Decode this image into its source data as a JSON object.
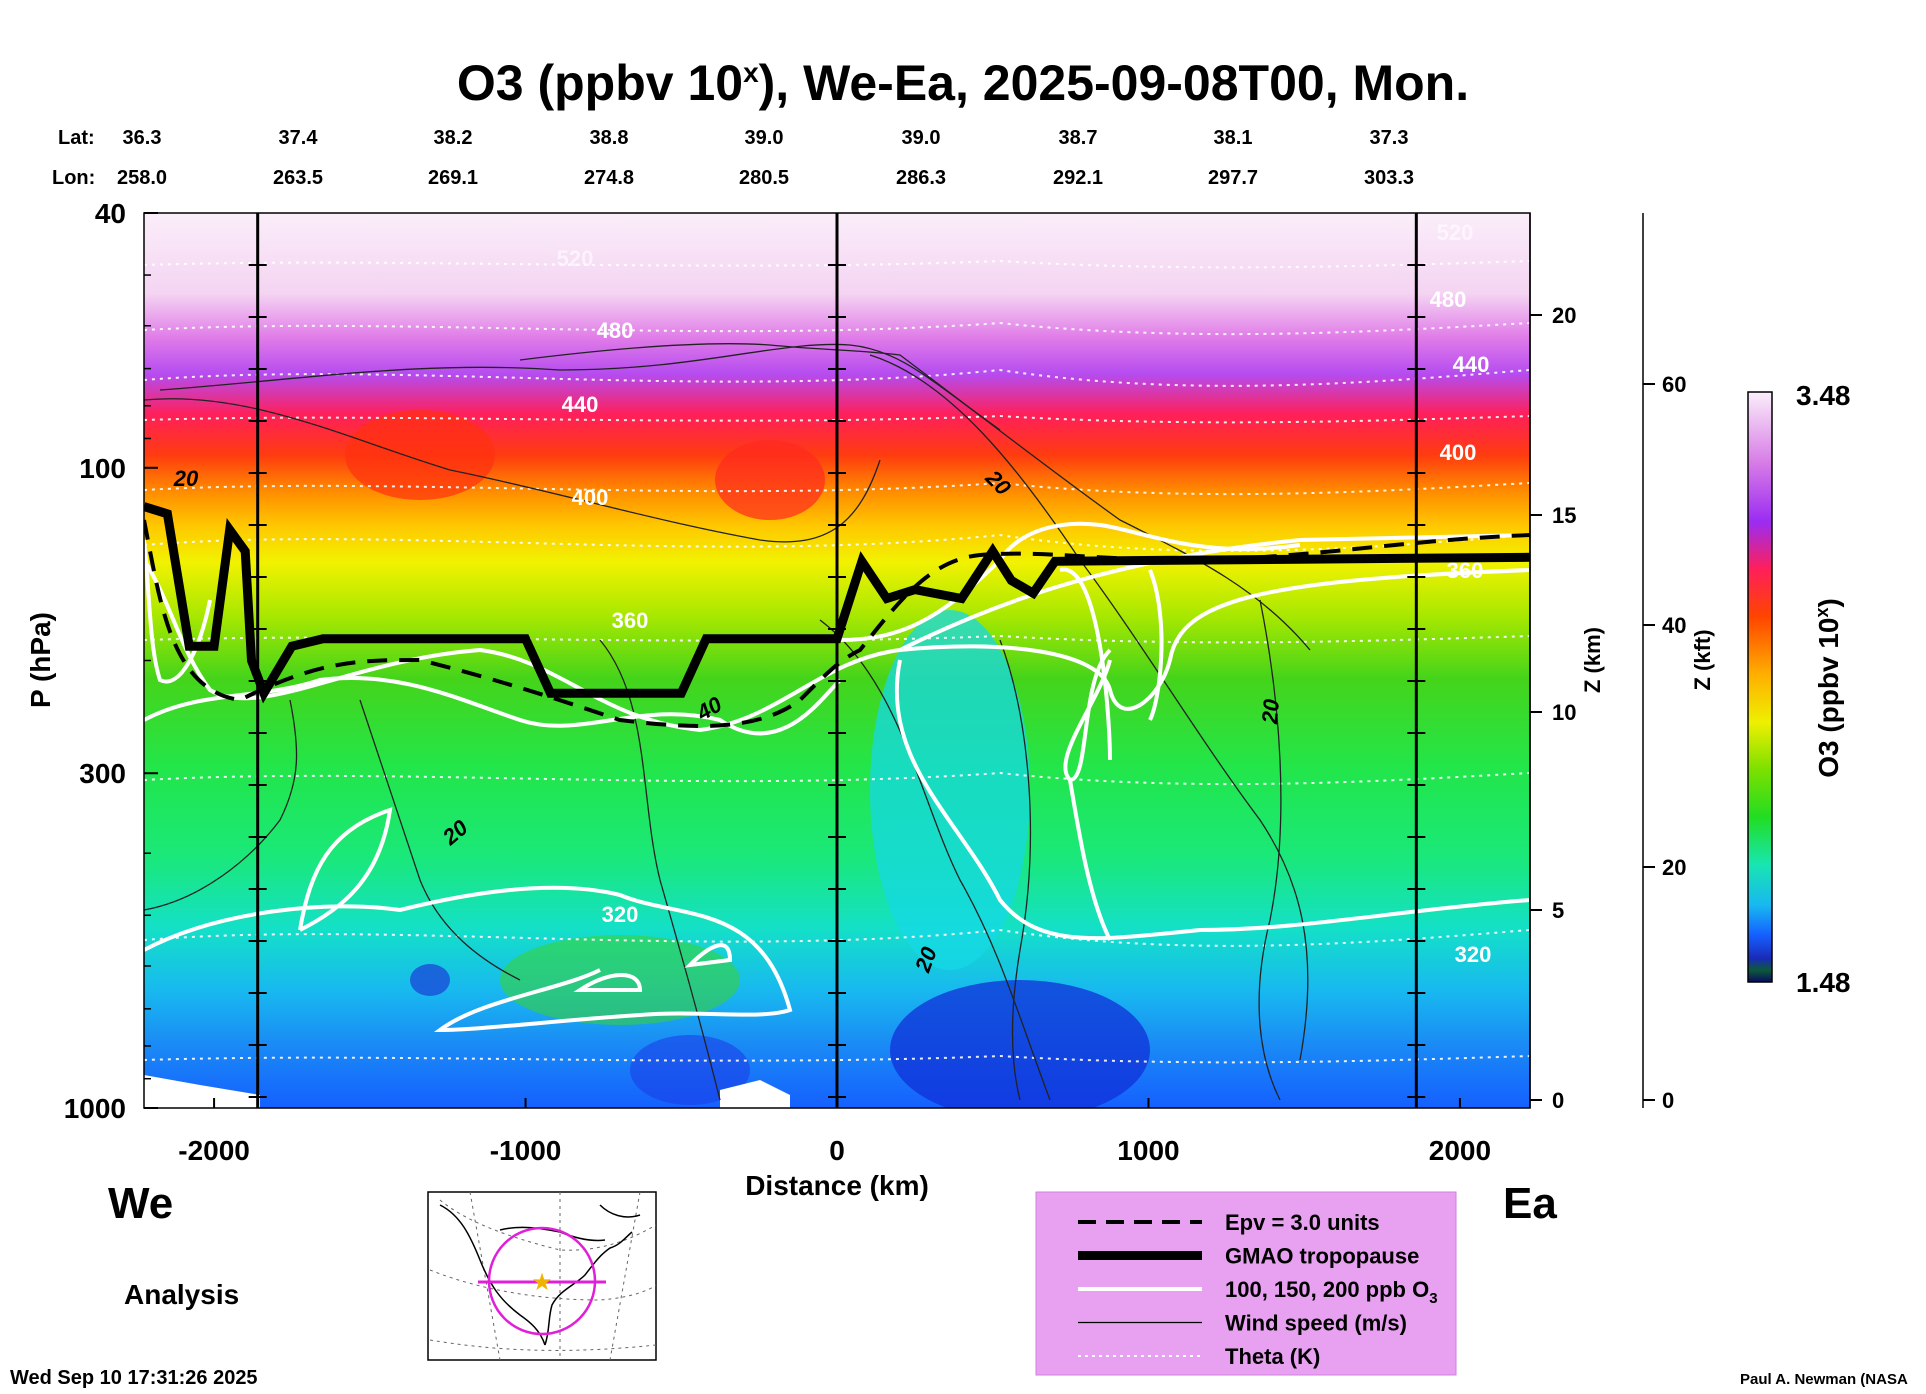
{
  "chart_data": {
    "type": "heatmap",
    "title": "O3 (ppbv 10",
    "title_sup": "x",
    "title_rest": "), We-Ea, 2025-09-08T00, Mon.",
    "lat_label": "Lat:",
    "lon_label": "Lon:",
    "lats": [
      "36.3",
      "37.4",
      "38.2",
      "38.8",
      "39.0",
      "39.0",
      "38.7",
      "38.1",
      "37.3"
    ],
    "lons": [
      "258.0",
      "263.5",
      "269.1",
      "274.8",
      "280.5",
      "286.3",
      "292.1",
      "297.7",
      "303.3"
    ],
    "xlabel": "Distance (km)",
    "xlim": [
      -2225,
      2225
    ],
    "x_ticks": [
      -2000,
      -1000,
      0,
      1000,
      2000
    ],
    "x_tick_labels": [
      "-2000",
      "-1000",
      "0",
      "1000",
      "2000"
    ],
    "ylabel": "P (hPa)",
    "ylim": [
      1000,
      40
    ],
    "y_scale": "log",
    "y_ticks": [
      40,
      100,
      300,
      1000
    ],
    "y_tick_labels": [
      "40",
      "100",
      "300",
      "1000"
    ],
    "z_km_label": "Z (km)",
    "z_km_ticks": [
      "0",
      "5",
      "10",
      "15",
      "20"
    ],
    "z_kft_label": "Z (kft)",
    "z_kft_ticks": [
      "0",
      "20",
      "40",
      "60"
    ],
    "colorbar": {
      "label": "O3 (ppbv 10",
      "label_sup": "x",
      "label_rest": ")",
      "max": "3.48",
      "min": "1.48"
    },
    "theta_labels": [
      "520",
      "480",
      "440",
      "400",
      "360",
      "320",
      "520",
      "480",
      "440",
      "400",
      "360",
      "320"
    ],
    "o3_labels": [
      "40"
    ],
    "wind_labels": [
      "20",
      "20",
      "20",
      "20",
      "20"
    ],
    "left_label": "We",
    "right_label": "Ea",
    "analysis_label": "Analysis",
    "legend": [
      {
        "label": "Epv = 3.0 units",
        "style": "dashed"
      },
      {
        "label": "GMAO tropopause",
        "style": "thick"
      },
      {
        "label": "100, 150, 200 ppb O",
        "sub": "3",
        "style": "white"
      },
      {
        "label": "Wind speed (m/s)",
        "style": "thin"
      },
      {
        "label": "Theta (K)",
        "style": "dotted"
      }
    ],
    "tropopause_hpa": [
      {
        "x": -2225,
        "p": 115
      },
      {
        "x": -2150,
        "p": 118
      },
      {
        "x": -2080,
        "p": 190
      },
      {
        "x": -2000,
        "p": 190
      },
      {
        "x": -1950,
        "p": 125
      },
      {
        "x": -1900,
        "p": 135
      },
      {
        "x": -1880,
        "p": 200
      },
      {
        "x": -1840,
        "p": 225
      },
      {
        "x": -1750,
        "p": 190
      },
      {
        "x": -1650,
        "p": 185
      },
      {
        "x": -1000,
        "p": 185
      },
      {
        "x": -920,
        "p": 225
      },
      {
        "x": -500,
        "p": 225
      },
      {
        "x": -420,
        "p": 185
      },
      {
        "x": 0,
        "p": 185
      },
      {
        "x": 80,
        "p": 140
      },
      {
        "x": 160,
        "p": 160
      },
      {
        "x": 250,
        "p": 155
      },
      {
        "x": 400,
        "p": 160
      },
      {
        "x": 500,
        "p": 135
      },
      {
        "x": 560,
        "p": 150
      },
      {
        "x": 630,
        "p": 157
      },
      {
        "x": 700,
        "p": 140
      },
      {
        "x": 2225,
        "p": 138
      }
    ]
  },
  "timestamp": "Wed Sep 10 17:31:26 2025",
  "credit": "Paul A. Newman (NASA"
}
